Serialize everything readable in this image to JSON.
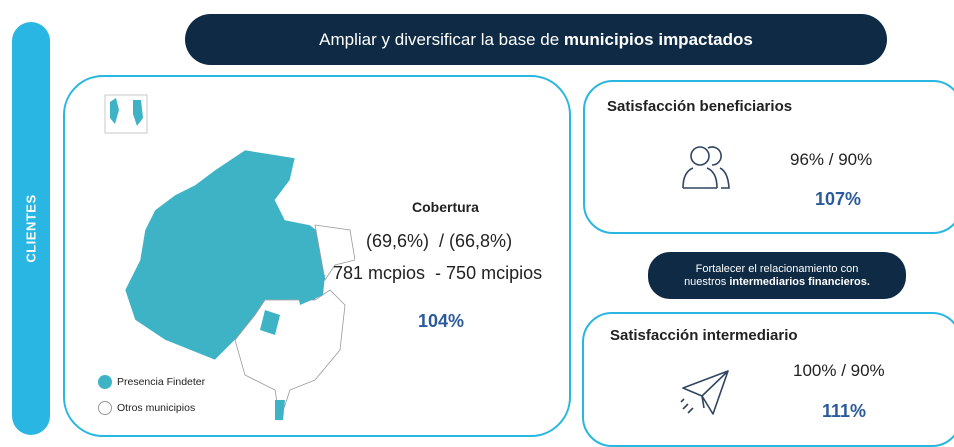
{
  "sidebar": {
    "label": "CLIENTES"
  },
  "banner": {
    "text": "Ampliar y diversificar la base de ",
    "bold": "municipios impactados"
  },
  "coverage": {
    "title": "Cobertura",
    "percentages": "(69,6%)  / (66,8%)",
    "counts": "781 mcpios  - 750 mcipios",
    "result": "104%"
  },
  "legend": [
    "Presencia Findeter",
    "Otros municipios"
  ],
  "beneficiaries": {
    "title": "Satisfacción beneficiarios",
    "ratio": "96% / 90%",
    "result": "107%"
  },
  "banner2": {
    "line1": "Fortalecer el relacionamiento con",
    "line2": "nuestros ",
    "bold": "intermediarios financieros."
  },
  "intermediary": {
    "title": "Satisfacción intermediario",
    "ratio": "100% / 90%",
    "result": "111%"
  }
}
